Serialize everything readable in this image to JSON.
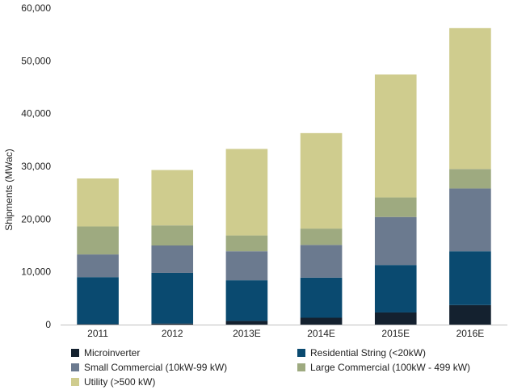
{
  "chart_data": {
    "type": "bar",
    "stacked": true,
    "title": "",
    "xlabel": "",
    "ylabel": "Shipments (MWac)",
    "ylim": [
      0,
      60000
    ],
    "yticks": [
      "0",
      "10,000",
      "20,000",
      "30,000",
      "40,000",
      "50,000",
      "60,000"
    ],
    "categories": [
      "2011",
      "2012",
      "2013E",
      "2014E",
      "2015E",
      "2016E"
    ],
    "series": [
      {
        "name": "Microinverter",
        "color": "#14212f",
        "values": [
          100,
          200,
          700,
          1300,
          2300,
          3700
        ]
      },
      {
        "name": "Residential  String (<20kW)",
        "color": "#0a4a70",
        "values": [
          8900,
          9600,
          7700,
          7600,
          9000,
          10200
        ]
      },
      {
        "name": "Small Commercial (10kW-99 kW)",
        "color": "#6b7a8f",
        "values": [
          4300,
          5200,
          5500,
          6200,
          9100,
          11900
        ]
      },
      {
        "name": "Large Commercial (100kW - 499 kW)",
        "color": "#9eaa80",
        "values": [
          5300,
          3800,
          3000,
          3100,
          3700,
          3700
        ]
      },
      {
        "name": "Utility (>500 kW)",
        "color": "#cfcc8e",
        "values": [
          9100,
          10500,
          16400,
          18100,
          23300,
          26700
        ]
      }
    ],
    "grid": false,
    "legend_position": "bottom"
  }
}
